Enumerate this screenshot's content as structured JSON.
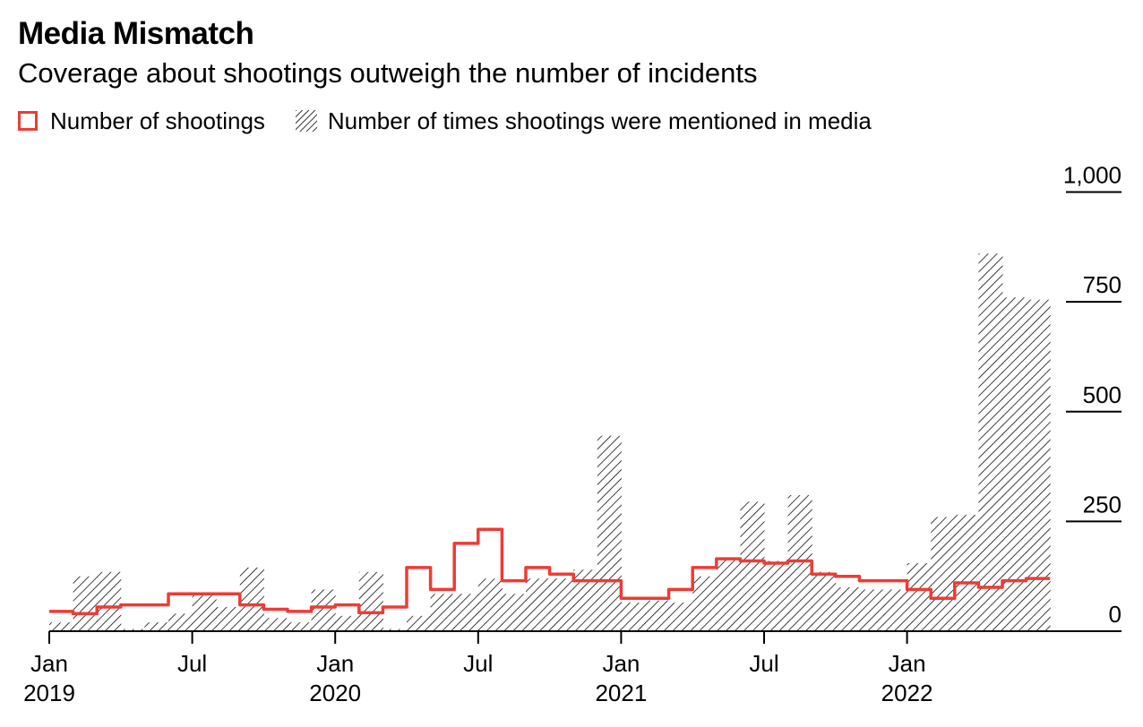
{
  "title": "Media Mismatch",
  "subtitle": "Coverage about shootings outweigh the number of incidents",
  "legend": {
    "shootings_label": "Number of shootings",
    "mentions_label": "Number of times shootings were mentioned in media"
  },
  "colors": {
    "shootings": "#ee3b35",
    "hatch": "#000000",
    "axis": "#000000"
  },
  "chart_data": {
    "type": "area",
    "title": "Media Mismatch",
    "subtitle": "Coverage about shootings outweigh the number of incidents",
    "x_unit": "month",
    "x_start": "2019-01",
    "months": [
      "2019-01",
      "2019-02",
      "2019-03",
      "2019-04",
      "2019-05",
      "2019-06",
      "2019-07",
      "2019-08",
      "2019-09",
      "2019-10",
      "2019-11",
      "2019-12",
      "2020-01",
      "2020-02",
      "2020-03",
      "2020-04",
      "2020-05",
      "2020-06",
      "2020-07",
      "2020-08",
      "2020-09",
      "2020-10",
      "2020-11",
      "2020-12",
      "2021-01",
      "2021-02",
      "2021-03",
      "2021-04",
      "2021-05",
      "2021-06",
      "2021-07",
      "2021-08",
      "2021-09",
      "2021-10",
      "2021-11",
      "2021-12",
      "2022-01",
      "2022-02",
      "2022-03",
      "2022-04",
      "2022-05",
      "2022-06"
    ],
    "x_ticks": [
      {
        "index": 0,
        "label": "Jan",
        "year": "2019"
      },
      {
        "index": 6,
        "label": "Jul",
        "year": ""
      },
      {
        "index": 12,
        "label": "Jan",
        "year": "2020"
      },
      {
        "index": 18,
        "label": "Jul",
        "year": ""
      },
      {
        "index": 24,
        "label": "Jan",
        "year": "2021"
      },
      {
        "index": 30,
        "label": "Jul",
        "year": ""
      },
      {
        "index": 36,
        "label": "Jan",
        "year": "2022"
      }
    ],
    "y_ticks": [
      0,
      250,
      500,
      750,
      1000
    ],
    "y_tick_labels": [
      "0",
      "250",
      "500",
      "750",
      "1,000"
    ],
    "ylim": [
      0,
      1000
    ],
    "series": [
      {
        "name": "Number of times shootings were mentioned in media",
        "style": "hatched-step",
        "values": [
          20,
          125,
          135,
          5,
          20,
          40,
          85,
          55,
          145,
          30,
          20,
          95,
          35,
          135,
          5,
          35,
          85,
          85,
          120,
          85,
          120,
          120,
          140,
          445,
          65,
          70,
          65,
          125,
          165,
          295,
          160,
          310,
          135,
          100,
          95,
          95,
          155,
          260,
          265,
          860,
          760,
          755
        ]
      },
      {
        "name": "Number of shootings",
        "style": "red-step-line",
        "values": [
          45,
          40,
          55,
          60,
          60,
          85,
          85,
          85,
          60,
          50,
          45,
          55,
          60,
          42,
          55,
          145,
          95,
          200,
          232,
          115,
          145,
          130,
          115,
          115,
          75,
          75,
          95,
          145,
          165,
          160,
          155,
          160,
          130,
          125,
          115,
          115,
          95,
          75,
          110,
          100,
          115,
          120
        ]
      }
    ]
  }
}
